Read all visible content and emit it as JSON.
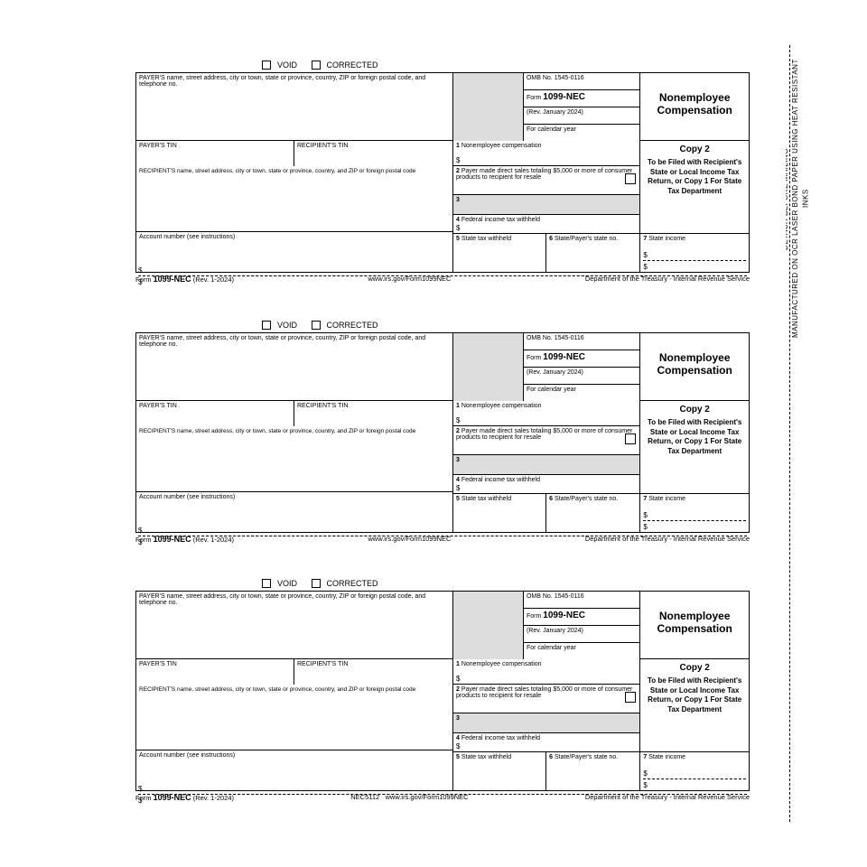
{
  "side_text": "DETACH BEFORE MAILING\nMANUFACTURED ON OCR LASER BOND PAPER USING HEAT RESISTANT INKS",
  "form": {
    "void": "VOID",
    "corrected": "CORRECTED",
    "payer_label": "PAYER'S name, street address, city or town, state or province, country, ZIP or foreign postal code, and telephone no.",
    "payer_tin": "PAYER'S TIN",
    "recipient_tin": "RECIPIENT'S TIN",
    "recipient_label": "RECIPIENT'S name, street address, city or town, state or province, country, and ZIP or foreign postal code",
    "account": "Account number (see instructions)",
    "omb": "OMB No. 1545-0116",
    "form_no_pre": "Form",
    "form_no": "1099-NEC",
    "rev": "(Rev. January 2024)",
    "cal_year": "For calendar year",
    "box1": "Nonemployee compensation",
    "box2": "Payer made direct sales totaling $5,000 or more of consumer products to recipient for resale",
    "box3": "",
    "box4": "Federal income tax withheld",
    "box5": "State tax withheld",
    "box6": "State/Payer's state no.",
    "box7": "State income",
    "title": "Nonemployee Compensation",
    "copy": "Copy 2",
    "copy_desc": "To be Filed with Recipient's State or Local Income Tax Return, or Copy 1 For State Tax Department",
    "footer_form": "1099-NEC",
    "footer_rev": "(Rev. 1-2024)",
    "footer_url": "www.irs.gov/Form1099NEC",
    "footer_dept": "Department of the Treasury - Internal Revenue Service",
    "product_code": "NEC5112"
  }
}
